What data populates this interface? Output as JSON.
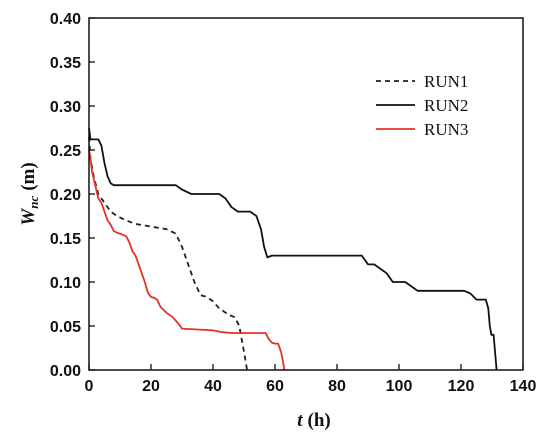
{
  "chart_data": {
    "type": "line",
    "xlabel": {
      "main": "t",
      "unit": "(h)"
    },
    "ylabel": {
      "main": "W",
      "sub": "nc",
      "unit": "(m)"
    },
    "xlim": [
      0,
      140
    ],
    "ylim": [
      0.0,
      0.4
    ],
    "xticks": [
      "0",
      "20",
      "40",
      "60",
      "80",
      "100",
      "120",
      "140"
    ],
    "yticks": [
      "0.00",
      "0.05",
      "0.10",
      "0.15",
      "0.20",
      "0.25",
      "0.30",
      "0.35",
      "0.40"
    ],
    "grid": false,
    "legend_position": "upper-right",
    "series": [
      {
        "name": "RUN1",
        "color": "#222222",
        "dash": "dashed",
        "points": [
          [
            0,
            0.265
          ],
          [
            0.5,
            0.24
          ],
          [
            1.5,
            0.22
          ],
          [
            3,
            0.2
          ],
          [
            5,
            0.19
          ],
          [
            7,
            0.18
          ],
          [
            9,
            0.175
          ],
          [
            12,
            0.17
          ],
          [
            15,
            0.166
          ],
          [
            20,
            0.163
          ],
          [
            25,
            0.16
          ],
          [
            28,
            0.155
          ],
          [
            30,
            0.14
          ],
          [
            32,
            0.12
          ],
          [
            34,
            0.1
          ],
          [
            36,
            0.085
          ],
          [
            38,
            0.083
          ],
          [
            40,
            0.078
          ],
          [
            42,
            0.07
          ],
          [
            45,
            0.063
          ],
          [
            47,
            0.06
          ],
          [
            48.5,
            0.05
          ],
          [
            49.5,
            0.03
          ],
          [
            50.5,
            0.01
          ],
          [
            51,
            0.0
          ]
        ]
      },
      {
        "name": "RUN2",
        "color": "#111111",
        "dash": "solid",
        "points": [
          [
            0,
            0.275
          ],
          [
            0.5,
            0.262
          ],
          [
            3,
            0.262
          ],
          [
            4,
            0.255
          ],
          [
            5,
            0.235
          ],
          [
            6,
            0.22
          ],
          [
            7,
            0.212
          ],
          [
            8,
            0.21
          ],
          [
            12,
            0.21
          ],
          [
            26,
            0.21
          ],
          [
            28,
            0.21
          ],
          [
            30,
            0.205
          ],
          [
            33,
            0.2
          ],
          [
            35,
            0.2
          ],
          [
            40,
            0.2
          ],
          [
            42,
            0.2
          ],
          [
            44,
            0.195
          ],
          [
            46,
            0.185
          ],
          [
            48,
            0.18
          ],
          [
            50,
            0.18
          ],
          [
            52,
            0.18
          ],
          [
            54,
            0.175
          ],
          [
            55.5,
            0.16
          ],
          [
            56.5,
            0.14
          ],
          [
            57.5,
            0.128
          ],
          [
            59,
            0.13
          ],
          [
            62,
            0.13
          ],
          [
            75,
            0.13
          ],
          [
            88,
            0.13
          ],
          [
            90,
            0.12
          ],
          [
            92,
            0.12
          ],
          [
            94,
            0.115
          ],
          [
            96,
            0.11
          ],
          [
            98,
            0.1
          ],
          [
            102,
            0.1
          ],
          [
            104,
            0.095
          ],
          [
            106,
            0.09
          ],
          [
            110,
            0.09
          ],
          [
            121,
            0.09
          ],
          [
            123,
            0.087
          ],
          [
            125,
            0.08
          ],
          [
            128,
            0.08
          ],
          [
            128.8,
            0.07
          ],
          [
            129.3,
            0.05
          ],
          [
            129.8,
            0.04
          ],
          [
            130.5,
            0.04
          ],
          [
            131,
            0.02
          ],
          [
            131.5,
            0.0
          ]
        ]
      },
      {
        "name": "RUN3",
        "color": "#e0332a",
        "dash": "solid",
        "points": [
          [
            0,
            0.25
          ],
          [
            0.5,
            0.24
          ],
          [
            1,
            0.225
          ],
          [
            2,
            0.21
          ],
          [
            3,
            0.195
          ],
          [
            4,
            0.19
          ],
          [
            5,
            0.18
          ],
          [
            6,
            0.17
          ],
          [
            7,
            0.165
          ],
          [
            8,
            0.158
          ],
          [
            9,
            0.156
          ],
          [
            10,
            0.155
          ],
          [
            12,
            0.152
          ],
          [
            13,
            0.145
          ],
          [
            14,
            0.135
          ],
          [
            15,
            0.13
          ],
          [
            16,
            0.12
          ],
          [
            17,
            0.11
          ],
          [
            18,
            0.1
          ],
          [
            19,
            0.088
          ],
          [
            20,
            0.083
          ],
          [
            21,
            0.082
          ],
          [
            22,
            0.08
          ],
          [
            23,
            0.072
          ],
          [
            25,
            0.065
          ],
          [
            27,
            0.06
          ],
          [
            29,
            0.052
          ],
          [
            30,
            0.047
          ],
          [
            35,
            0.046
          ],
          [
            40,
            0.045
          ],
          [
            43,
            0.043
          ],
          [
            46,
            0.042
          ],
          [
            50,
            0.042
          ],
          [
            55,
            0.042
          ],
          [
            57,
            0.042
          ],
          [
            58,
            0.035
          ],
          [
            59,
            0.031
          ],
          [
            60,
            0.03
          ],
          [
            61,
            0.03
          ],
          [
            62,
            0.02
          ],
          [
            62.8,
            0.005
          ],
          [
            63,
            0.0
          ]
        ]
      }
    ]
  }
}
